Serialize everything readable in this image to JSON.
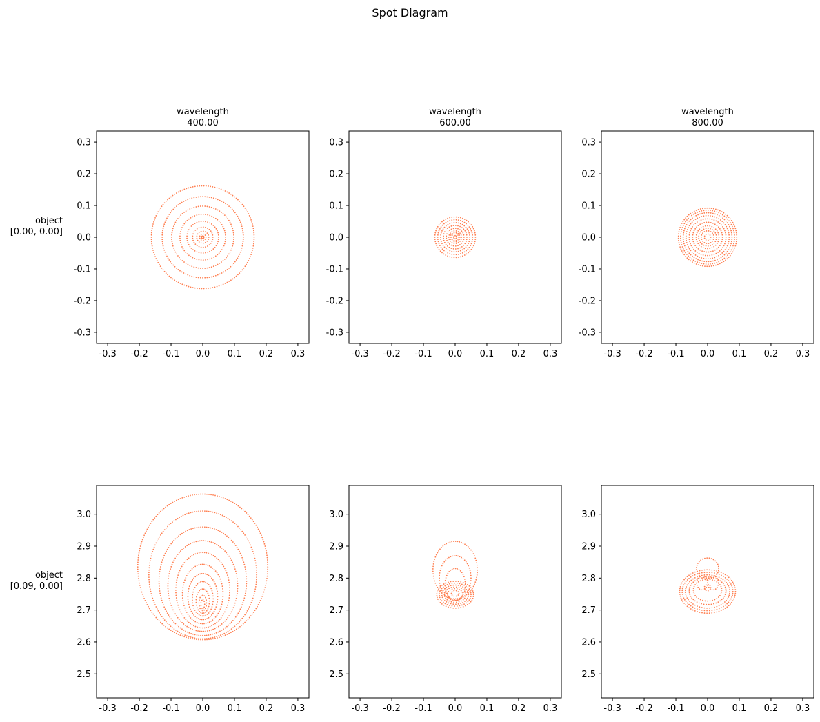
{
  "figure": {
    "title": "Spot Diagram",
    "spot_color": "#ff7f50",
    "column_header": "wavelength",
    "row_header": "object"
  },
  "chart_data": [
    {
      "type": "scatter",
      "column_label": [
        "wavelength",
        "400.00"
      ],
      "row_label": [
        "object",
        "[0.00, 0.00]"
      ],
      "xlim": [
        -0.335,
        0.335
      ],
      "ylim": [
        -0.335,
        0.335
      ],
      "xticks": [
        "-0.3",
        "-0.2",
        "-0.1",
        "0.0",
        "0.1",
        "0.2",
        "0.3"
      ],
      "yticks": [
        "-0.3",
        "-0.2",
        "-0.1",
        "0.0",
        "0.1",
        "0.2",
        "0.3"
      ],
      "rings": [
        {
          "cx": 0,
          "cy": 0,
          "rx": 0.162,
          "ry": 0.162
        },
        {
          "cx": 0,
          "cy": 0,
          "rx": 0.128,
          "ry": 0.128
        },
        {
          "cx": 0,
          "cy": 0,
          "rx": 0.098,
          "ry": 0.098
        },
        {
          "cx": 0,
          "cy": 0,
          "rx": 0.072,
          "ry": 0.072
        },
        {
          "cx": 0,
          "cy": 0,
          "rx": 0.05,
          "ry": 0.05
        },
        {
          "cx": 0,
          "cy": 0,
          "rx": 0.032,
          "ry": 0.032
        },
        {
          "cx": 0,
          "cy": 0,
          "rx": 0.019,
          "ry": 0.019
        },
        {
          "cx": 0,
          "cy": 0,
          "rx": 0.01,
          "ry": 0.01
        },
        {
          "cx": 0,
          "cy": 0,
          "rx": 0.004,
          "ry": 0.004
        }
      ]
    },
    {
      "type": "scatter",
      "column_label": [
        "wavelength",
        "600.00"
      ],
      "row_label": [
        "",
        ""
      ],
      "xlim": [
        -0.335,
        0.335
      ],
      "ylim": [
        -0.335,
        0.335
      ],
      "xticks": [
        "-0.3",
        "-0.2",
        "-0.1",
        "0.0",
        "0.1",
        "0.2",
        "0.3"
      ],
      "yticks": [
        "-0.3",
        "-0.2",
        "-0.1",
        "0.0",
        "0.1",
        "0.2",
        "0.3"
      ],
      "rings": [
        {
          "cx": 0,
          "cy": 0,
          "rx": 0.064,
          "ry": 0.064
        },
        {
          "cx": 0,
          "cy": 0,
          "rx": 0.055,
          "ry": 0.055
        },
        {
          "cx": 0,
          "cy": 0,
          "rx": 0.046,
          "ry": 0.046
        },
        {
          "cx": 0,
          "cy": 0,
          "rx": 0.037,
          "ry": 0.037
        },
        {
          "cx": 0,
          "cy": 0,
          "rx": 0.028,
          "ry": 0.028
        },
        {
          "cx": 0,
          "cy": 0,
          "rx": 0.02,
          "ry": 0.02
        },
        {
          "cx": 0,
          "cy": 0,
          "rx": 0.015,
          "ry": 0.015
        },
        {
          "cx": 0,
          "cy": 0,
          "rx": 0.011,
          "ry": 0.011
        },
        {
          "cx": 0,
          "cy": 0,
          "rx": 0.005,
          "ry": 0.005
        }
      ]
    },
    {
      "type": "scatter",
      "column_label": [
        "wavelength",
        "800.00"
      ],
      "row_label": [
        "",
        ""
      ],
      "xlim": [
        -0.335,
        0.335
      ],
      "ylim": [
        -0.335,
        0.335
      ],
      "xticks": [
        "-0.3",
        "-0.2",
        "-0.1",
        "0.0",
        "0.1",
        "0.2",
        "0.3"
      ],
      "yticks": [
        "-0.3",
        "-0.2",
        "-0.1",
        "0.0",
        "0.1",
        "0.2",
        "0.3"
      ],
      "rings": [
        {
          "cx": 0,
          "cy": 0,
          "rx": 0.092,
          "ry": 0.092
        },
        {
          "cx": 0,
          "cy": 0,
          "rx": 0.085,
          "ry": 0.085
        },
        {
          "cx": 0,
          "cy": 0,
          "rx": 0.077,
          "ry": 0.077
        },
        {
          "cx": 0,
          "cy": 0,
          "rx": 0.068,
          "ry": 0.068
        },
        {
          "cx": 0,
          "cy": 0,
          "rx": 0.058,
          "ry": 0.058
        },
        {
          "cx": 0,
          "cy": 0,
          "rx": 0.047,
          "ry": 0.047
        },
        {
          "cx": 0,
          "cy": 0,
          "rx": 0.036,
          "ry": 0.036
        },
        {
          "cx": 0,
          "cy": 0,
          "rx": 0.028,
          "ry": 0.028
        },
        {
          "cx": 0,
          "cy": 0,
          "rx": 0.02,
          "ry": 0.02
        },
        {
          "cx": 0,
          "cy": 0,
          "rx": 0.01,
          "ry": 0.01
        }
      ]
    },
    {
      "type": "scatter",
      "column_label": [
        "",
        ""
      ],
      "row_label": [
        "object",
        "[0.09, 0.00]"
      ],
      "xlim": [
        -0.335,
        0.335
      ],
      "ylim": [
        2.425,
        3.09
      ],
      "xticks": [
        "-0.3",
        "-0.2",
        "-0.1",
        "0.0",
        "0.1",
        "0.2",
        "0.3"
      ],
      "yticks": [
        "2.5",
        "2.6",
        "2.7",
        "2.8",
        "2.9",
        "3.0"
      ],
      "rings": [
        {
          "cx": 0,
          "cy": 2.835,
          "rx": 0.205,
          "ry": 0.228
        },
        {
          "cx": 0,
          "cy": 2.81,
          "rx": 0.17,
          "ry": 0.2
        },
        {
          "cx": 0,
          "cy": 2.79,
          "rx": 0.138,
          "ry": 0.17
        },
        {
          "cx": 0,
          "cy": 2.775,
          "rx": 0.11,
          "ry": 0.142
        },
        {
          "cx": 0,
          "cy": 2.762,
          "rx": 0.085,
          "ry": 0.118
        },
        {
          "cx": 0,
          "cy": 2.75,
          "rx": 0.064,
          "ry": 0.093
        },
        {
          "cx": 0,
          "cy": 2.742,
          "rx": 0.047,
          "ry": 0.072
        },
        {
          "cx": 0,
          "cy": 2.735,
          "rx": 0.033,
          "ry": 0.054
        },
        {
          "cx": 0,
          "cy": 2.728,
          "rx": 0.021,
          "ry": 0.038
        },
        {
          "cx": 0,
          "cy": 2.722,
          "rx": 0.012,
          "ry": 0.024
        },
        {
          "cx": 0,
          "cy": 2.718,
          "rx": 0.006,
          "ry": 0.014
        }
      ]
    },
    {
      "type": "scatter",
      "column_label": [
        "",
        ""
      ],
      "row_label": [
        "",
        ""
      ],
      "xlim": [
        -0.335,
        0.335
      ],
      "ylim": [
        2.425,
        3.09
      ],
      "xticks": [
        "-0.3",
        "-0.2",
        "-0.1",
        "0.0",
        "0.1",
        "0.2",
        "0.3"
      ],
      "yticks": [
        "2.5",
        "2.6",
        "2.7",
        "2.8",
        "2.9",
        "3.0"
      ],
      "rings": [
        {
          "cx": 0,
          "cy": 2.825,
          "rx": 0.07,
          "ry": 0.09
        },
        {
          "cx": 0,
          "cy": 2.8,
          "rx": 0.05,
          "ry": 0.07
        },
        {
          "cx": 0,
          "cy": 2.78,
          "rx": 0.032,
          "ry": 0.05
        },
        {
          "cx": 0,
          "cy": 2.748,
          "rx": 0.058,
          "ry": 0.042
        },
        {
          "cx": 0,
          "cy": 2.748,
          "rx": 0.05,
          "ry": 0.036
        },
        {
          "cx": 0,
          "cy": 2.748,
          "rx": 0.042,
          "ry": 0.03
        },
        {
          "cx": 0,
          "cy": 2.748,
          "rx": 0.034,
          "ry": 0.024
        },
        {
          "cx": 0,
          "cy": 2.75,
          "rx": 0.024,
          "ry": 0.017
        },
        {
          "cx": 0,
          "cy": 2.752,
          "rx": 0.012,
          "ry": 0.009
        }
      ]
    },
    {
      "type": "scatter",
      "column_label": [
        "",
        ""
      ],
      "row_label": [
        "",
        ""
      ],
      "xlim": [
        -0.335,
        0.335
      ],
      "ylim": [
        2.425,
        3.09
      ],
      "xticks": [
        "-0.3",
        "-0.2",
        "-0.1",
        "0.0",
        "0.1",
        "0.2",
        "0.3"
      ],
      "yticks": [
        "2.5",
        "2.6",
        "2.7",
        "2.8",
        "2.9",
        "3.0"
      ],
      "rings": [
        {
          "cx": 0,
          "cy": 2.83,
          "rx": 0.035,
          "ry": 0.033
        },
        {
          "cx": 0,
          "cy": 2.758,
          "rx": 0.088,
          "ry": 0.068
        },
        {
          "cx": 0,
          "cy": 2.758,
          "rx": 0.08,
          "ry": 0.06
        },
        {
          "cx": 0,
          "cy": 2.758,
          "rx": 0.07,
          "ry": 0.052
        },
        {
          "cx": 0,
          "cy": 2.76,
          "rx": 0.058,
          "ry": 0.043
        },
        {
          "cx": 0,
          "cy": 2.762,
          "rx": 0.045,
          "ry": 0.034
        },
        {
          "cx": -0.017,
          "cy": 2.785,
          "rx": 0.017,
          "ry": 0.022
        },
        {
          "cx": 0.017,
          "cy": 2.785,
          "rx": 0.017,
          "ry": 0.022
        },
        {
          "cx": 0,
          "cy": 2.77,
          "rx": 0.01,
          "ry": 0.01
        }
      ]
    }
  ]
}
